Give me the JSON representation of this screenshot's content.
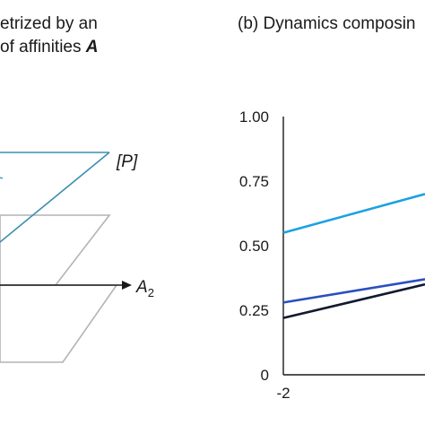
{
  "panel_a": {
    "title_line1": "etrized by an",
    "title_line2": "of affinities ",
    "title_var": "A",
    "label_p": "[P]",
    "axis_a2_base": "A",
    "axis_a2_sub": "2",
    "colors": {
      "top_plane": "#3a8fb0",
      "gray_planes": "#b3b3b3",
      "axis": "#1a1a1a"
    }
  },
  "panel_b": {
    "title": "(b) Dynamics composin"
  },
  "chart_data": {
    "type": "line",
    "title": "(b) Dynamics composin",
    "xlabel": "",
    "ylabel": "",
    "xlim": [
      -2,
      0.6
    ],
    "ylim": [
      0,
      1.0
    ],
    "x_ticks": [
      "-2"
    ],
    "y_ticks": [
      "0",
      "0.25",
      "0.50",
      "0.75",
      "1.00"
    ],
    "grid": false,
    "series": [
      {
        "color": "#1ba1e2",
        "x": [
          -2,
          0.6
        ],
        "y": [
          0.55,
          0.7
        ]
      },
      {
        "color": "#2a4fc0",
        "x": [
          -2,
          0.6
        ],
        "y": [
          0.28,
          0.37
        ]
      },
      {
        "color": "#111a2e",
        "x": [
          -2,
          0.6
        ],
        "y": [
          0.22,
          0.35
        ]
      }
    ]
  }
}
